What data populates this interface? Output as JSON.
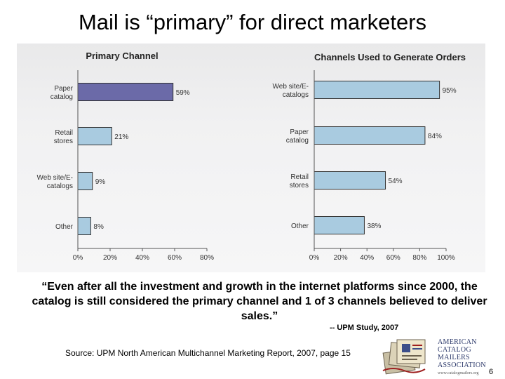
{
  "slide": {
    "title": "Mail is “primary” for direct marketers",
    "quote": "“Even after all the investment and growth in the internet platforms since 2000, the catalog is still considered the primary channel and 1 of 3 channels believed to deliver sales.”",
    "attribution": "-- UPM Study, 2007",
    "source": "Source: UPM North American Multichannel Marketing Report, 2007, page 15",
    "page_number": "6",
    "logo": {
      "line1": "AMERICAN",
      "line2": "CATALOG MAILERS",
      "line3": "ASSOCIATION",
      "url": "www.catalogmailers.org"
    }
  },
  "colors": {
    "bar_primary": "#6b6aa8",
    "bar_secondary": "#a9cbe0",
    "bar_outline": "#333333"
  },
  "chart_data": [
    {
      "type": "bar",
      "orientation": "horizontal",
      "title": "Primary Channel",
      "categories": [
        "Paper catalog",
        "Retail stores",
        "Web site/E-catalogs",
        "Other"
      ],
      "values": [
        59,
        21,
        9,
        8
      ],
      "value_labels": [
        "59%",
        "21%",
        "9%",
        "8%"
      ],
      "xlim": [
        0,
        80
      ],
      "xticks": [
        "0%",
        "20%",
        "40%",
        "60%",
        "80%"
      ],
      "highlight": "Paper catalog"
    },
    {
      "type": "bar",
      "orientation": "horizontal",
      "title": "Channels Used to Generate Orders",
      "categories": [
        "Web site/E-catalogs",
        "Paper catalog",
        "Retail stores",
        "Other"
      ],
      "values": [
        95,
        84,
        54,
        38
      ],
      "value_labels": [
        "95%",
        "84%",
        "54%",
        "38%"
      ],
      "xlim": [
        0,
        100
      ],
      "xticks": [
        "0%",
        "20%",
        "40%",
        "60%",
        "80%",
        "100%"
      ],
      "highlight": null
    }
  ]
}
